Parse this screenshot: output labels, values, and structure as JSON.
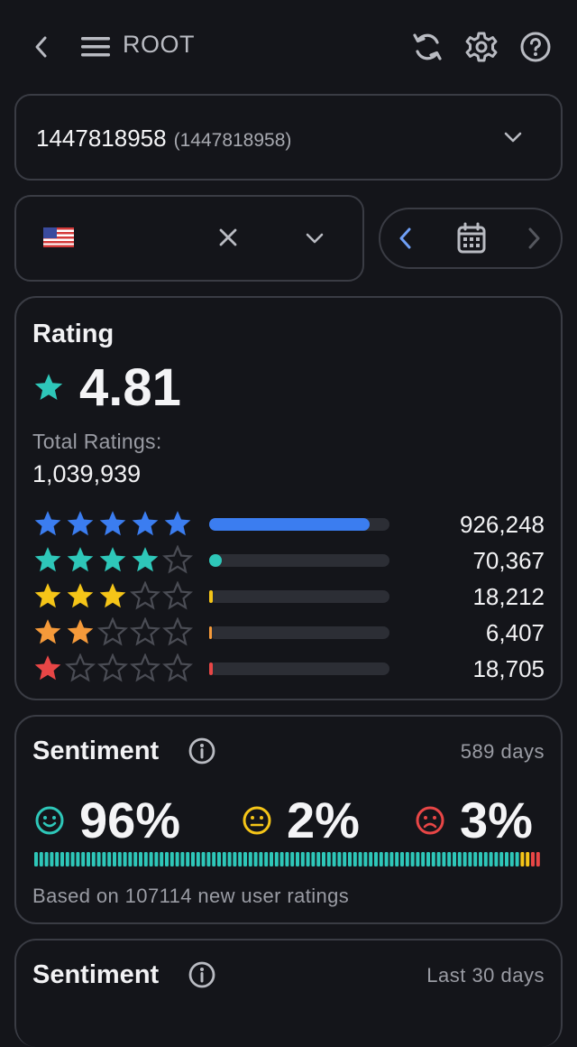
{
  "header": {
    "title": "ROOT"
  },
  "app_selector": {
    "name": "1447818958",
    "id_label": "(1447818958)"
  },
  "rating": {
    "title": "Rating",
    "average": "4.81",
    "total_label": "Total Ratings:",
    "total_value": "1,039,939",
    "rows": [
      {
        "stars": 5,
        "count": "926,248",
        "fraction": 0.891,
        "color": "#3b7df0"
      },
      {
        "stars": 4,
        "count": "70,367",
        "fraction": 0.068,
        "color": "#2ec7b9"
      },
      {
        "stars": 3,
        "count": "18,212",
        "fraction": 0.018,
        "color": "#f5c518"
      },
      {
        "stars": 2,
        "count": "6,407",
        "fraction": 0.006,
        "color": "#f59a3a"
      },
      {
        "stars": 1,
        "count": "18,705",
        "fraction": 0.018,
        "color": "#e84646"
      }
    ]
  },
  "sentiment_1": {
    "title": "Sentiment",
    "period": "589 days",
    "positive": "96%",
    "neutral": "2%",
    "negative": "3%",
    "footnote": "Based on 107114 new user ratings",
    "colors": {
      "positive": "#2ec7b9",
      "neutral": "#f5c518",
      "negative": "#e84646"
    }
  },
  "sentiment_2": {
    "title": "Sentiment",
    "period": "Last 30 days"
  }
}
